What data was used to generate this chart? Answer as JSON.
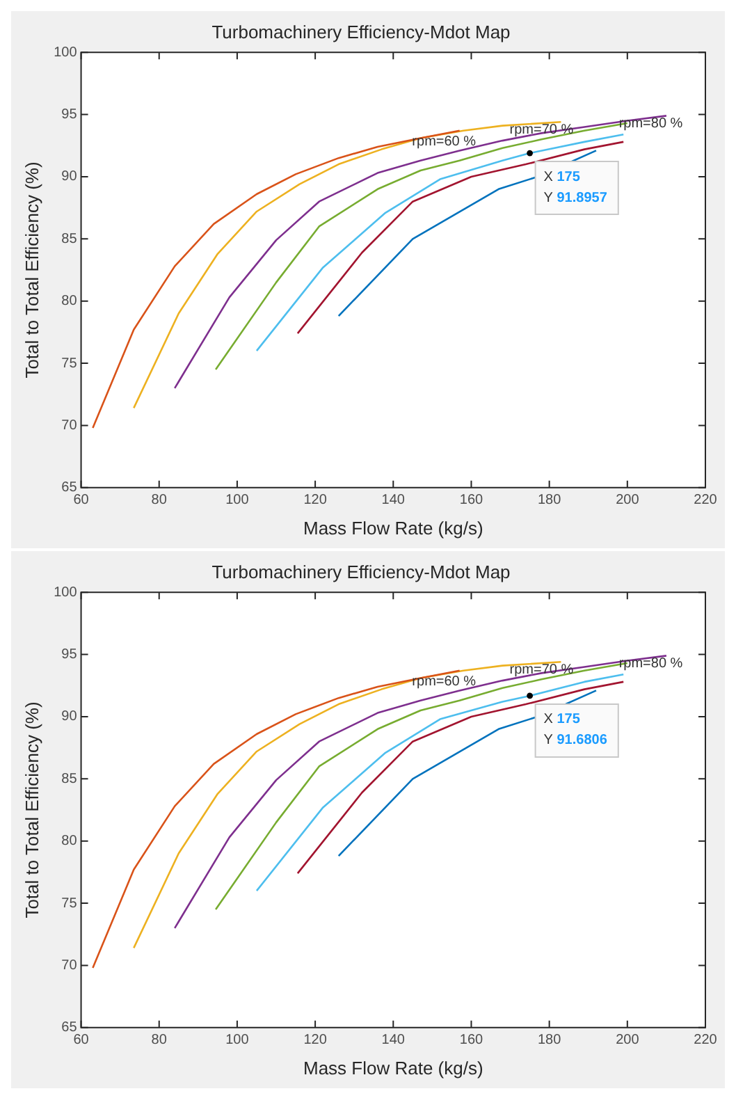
{
  "chart_data": [
    {
      "type": "line",
      "title": "Turbomachinery Efficiency-Mdot Map",
      "xlabel": "Mass Flow Rate (kg/s)",
      "ylabel": "Total to Total Efficiency (%)",
      "xlim": [
        60,
        220
      ],
      "xticks": [
        60,
        80,
        100,
        120,
        140,
        160,
        180,
        200,
        220
      ],
      "ylim": [
        65,
        100
      ],
      "yticks": [
        65,
        70,
        75,
        80,
        85,
        90,
        95,
        100
      ],
      "grid": false,
      "marker": "none",
      "line_style": "solid",
      "series": [
        {
          "color": "#0072bd",
          "x": [
            126,
            145,
            167,
            177,
            192
          ],
          "values": [
            78.8,
            85,
            89,
            90,
            92.1
          ]
        },
        {
          "color": "#d95319",
          "x": [
            63,
            73.5,
            84,
            94,
            105,
            115,
            126,
            136,
            147,
            157
          ],
          "values": [
            69.8,
            77.7,
            82.8,
            86.2,
            88.6,
            90.2,
            91.5,
            92.4,
            93.1,
            93.7
          ]
        },
        {
          "color": "#edb120",
          "x": [
            73.5,
            85,
            95,
            105,
            116,
            126,
            137,
            147,
            158,
            168,
            183
          ],
          "values": [
            71.4,
            79,
            83.8,
            87.2,
            89.4,
            91,
            92.2,
            93.1,
            93.7,
            94.1,
            94.4
          ]
        },
        {
          "color": "#7e2f8e",
          "x": [
            84,
            98,
            110,
            121,
            136,
            147,
            157,
            168,
            178,
            189,
            200,
            210
          ],
          "values": [
            73,
            80.3,
            84.9,
            88,
            90.3,
            91.3,
            92.1,
            92.9,
            93.5,
            94,
            94.5,
            94.9
          ]
        },
        {
          "color": "#77ac30",
          "x": [
            94.5,
            110,
            121,
            136,
            147,
            157,
            168,
            178,
            189,
            200
          ],
          "values": [
            74.5,
            81.5,
            86,
            89,
            90.5,
            91.3,
            92.3,
            93,
            93.7,
            94.3
          ]
        },
        {
          "color": "#4dbeee",
          "x": [
            105,
            122,
            138,
            152,
            168,
            175,
            189,
            199
          ],
          "values": [
            76,
            82.7,
            87.1,
            89.8,
            91.3,
            91.8957,
            92.8,
            93.4
          ]
        },
        {
          "color": "#a2142f",
          "x": [
            115.5,
            132,
            145,
            160,
            174,
            189,
            199
          ],
          "values": [
            77.4,
            83.9,
            88,
            90,
            91,
            92.2,
            92.8
          ]
        }
      ],
      "annotations": [
        {
          "text": "rpm=60 %",
          "x": 153,
          "y": 92.8
        },
        {
          "text": "rpm=70 %",
          "x": 178,
          "y": 93.8
        },
        {
          "text": "rpm=80 %",
          "x": 206,
          "y": 94.3
        },
        {
          "text": "X 175\nY 91.8957",
          "x": 175,
          "y": 91.8957
        }
      ]
    },
    {
      "type": "line",
      "title": "Turbomachinery Efficiency-Mdot Map",
      "xlabel": "Mass Flow Rate (kg/s)",
      "ylabel": "Total to Total Efficiency (%)",
      "xlim": [
        60,
        220
      ],
      "xticks": [
        60,
        80,
        100,
        120,
        140,
        160,
        180,
        200,
        220
      ],
      "ylim": [
        65,
        100
      ],
      "yticks": [
        65,
        70,
        75,
        80,
        85,
        90,
        95,
        100
      ],
      "grid": false,
      "marker": "none",
      "line_style": "solid",
      "series": [
        {
          "color": "#0072bd",
          "x": [
            126,
            145,
            167,
            177,
            192
          ],
          "values": [
            78.8,
            85,
            89,
            90,
            92.1
          ]
        },
        {
          "color": "#d95319",
          "x": [
            63,
            73.5,
            84,
            94,
            105,
            115,
            126,
            136,
            147,
            157
          ],
          "values": [
            69.8,
            77.7,
            82.8,
            86.2,
            88.6,
            90.2,
            91.5,
            92.4,
            93.1,
            93.7
          ]
        },
        {
          "color": "#edb120",
          "x": [
            73.5,
            85,
            95,
            105,
            116,
            126,
            137,
            147,
            158,
            168,
            183
          ],
          "values": [
            71.4,
            79,
            83.8,
            87.2,
            89.4,
            91,
            92.2,
            93.1,
            93.7,
            94.1,
            94.4
          ]
        },
        {
          "color": "#7e2f8e",
          "x": [
            84,
            98,
            110,
            121,
            136,
            147,
            157,
            168,
            178,
            189,
            200,
            210
          ],
          "values": [
            73,
            80.3,
            84.9,
            88,
            90.3,
            91.3,
            92.1,
            92.9,
            93.5,
            94,
            94.5,
            94.9
          ]
        },
        {
          "color": "#77ac30",
          "x": [
            94.5,
            110,
            121,
            136,
            147,
            157,
            168,
            178,
            189,
            200
          ],
          "values": [
            74.5,
            81.5,
            86,
            89,
            90.5,
            91.3,
            92.3,
            93,
            93.7,
            94.3
          ]
        },
        {
          "color": "#4dbeee",
          "x": [
            105,
            122,
            138,
            152,
            168,
            175,
            189,
            199
          ],
          "values": [
            76,
            82.7,
            87.1,
            89.8,
            91.2,
            91.6806,
            92.8,
            93.4
          ]
        },
        {
          "color": "#a2142f",
          "x": [
            115.5,
            132,
            145,
            160,
            174,
            189,
            199
          ],
          "values": [
            77.4,
            83.9,
            88,
            90,
            91,
            92.2,
            92.8
          ]
        }
      ],
      "annotations": [
        {
          "text": "rpm=60 %",
          "x": 153,
          "y": 92.8
        },
        {
          "text": "rpm=70 %",
          "x": 178,
          "y": 93.8
        },
        {
          "text": "rpm=80 %",
          "x": 206,
          "y": 94.3
        },
        {
          "text": "X 175\nY 91.6806",
          "x": 175,
          "y": 91.6806
        }
      ]
    }
  ]
}
